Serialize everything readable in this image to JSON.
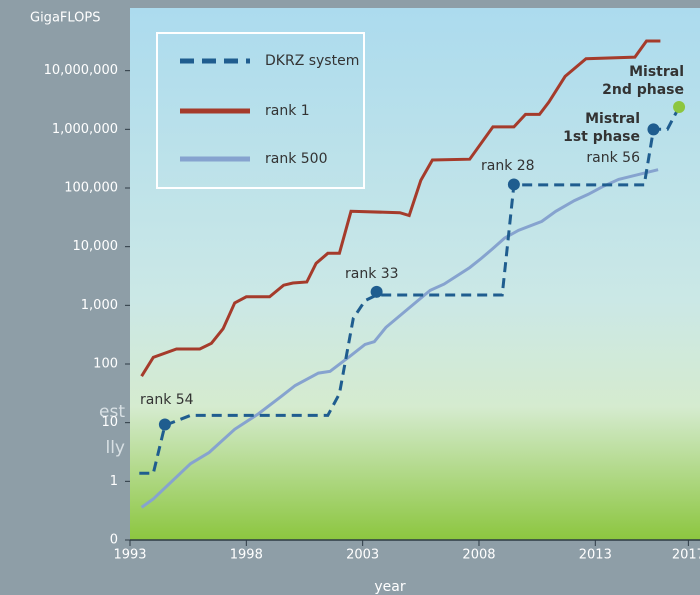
{
  "chart_data": {
    "type": "line",
    "y_unit_label": "GigaFLOPS",
    "x_label": "year",
    "log_y": true,
    "xlim": [
      1993,
      2017.5
    ],
    "ylim": [
      0.1,
      100000000
    ],
    "xticks": [
      1993,
      1998,
      2003,
      2008,
      2013,
      2017
    ],
    "yticks": [
      {
        "value": 0.1,
        "label": "0"
      },
      1,
      10,
      100,
      {
        "value": 1000,
        "label": "1,000"
      },
      {
        "value": 10000,
        "label": "10,000"
      },
      {
        "value": 100000,
        "label": "100,000"
      },
      {
        "value": 1000000,
        "label": "1,000,000"
      },
      {
        "value": 10000000,
        "label": "10,000,000"
      }
    ],
    "series": [
      {
        "name": "DKRZ system",
        "color": "#1f5d8f",
        "dashed": true,
        "x": [
          1993.4,
          1994,
          1994.5,
          1995.6,
          2001.5,
          2002,
          2002.6,
          2003.1,
          2003.6,
          2009,
          2009.5,
          2015.1,
          2015.5,
          2016.1,
          2016.6
        ],
        "values": [
          1.37,
          1.37,
          9,
          13.3,
          13.3,
          31,
          600,
          1200,
          1500,
          1500,
          113000,
          113000,
          1000000,
          1000000,
          2400000
        ]
      },
      {
        "name": "rank 1",
        "color": "#a53b2b",
        "dashed": false,
        "x": [
          1993.5,
          1994,
          1995,
          1996,
          1996.5,
          1997,
          1997.5,
          1998,
          1999,
          1999.6,
          2000,
          2000.6,
          2001,
          2001.5,
          2002,
          2002.5,
          2004.6,
          2005,
          2005.5,
          2006,
          2007.6,
          2008.6,
          2009.5,
          2010,
          2010.6,
          2011,
          2011.7,
          2012.6,
          2014.7,
          2015.2,
          2015.8
        ],
        "values": [
          62,
          130,
          180,
          180,
          225,
          400,
          1100,
          1400,
          1400,
          2200,
          2400,
          2500,
          5200,
          7700,
          7700,
          40000,
          38000,
          34000,
          135000,
          300000,
          310000,
          1100000,
          1100000,
          1800000,
          1800000,
          2900000,
          8000000,
          16000000,
          17000000,
          32000000,
          32000000
        ]
      },
      {
        "name": "rank 500",
        "color": "#86a3cf",
        "dashed": false,
        "x": [
          1993.5,
          1994,
          1995.6,
          1996.4,
          1997.5,
          1998.5,
          1999.5,
          2000.1,
          2001.1,
          2001.6,
          2002.5,
          2003.1,
          2003.5,
          2004,
          2005.9,
          2006.5,
          2007.6,
          2008.1,
          2008.6,
          2009.1,
          2009.7,
          2010.7,
          2011.3,
          2012.1,
          2012.7,
          2013.3,
          2014,
          2015.7
        ],
        "values": [
          0.36,
          0.5,
          2,
          3.1,
          7.7,
          14,
          28,
          43,
          70,
          75,
          140,
          215,
          240,
          420,
          1800,
          2300,
          4400,
          6300,
          9300,
          14000,
          19000,
          27000,
          40000,
          61000,
          78000,
          105000,
          140000,
          205000
        ]
      }
    ],
    "points": [
      {
        "x": 1994.5,
        "y": 9.3,
        "color": "#1f5d8f"
      },
      {
        "x": 2003.6,
        "y": 1700,
        "color": "#1f5d8f"
      },
      {
        "x": 2009.5,
        "y": 115000,
        "color": "#1f5d8f"
      },
      {
        "x": 2015.5,
        "y": 1000000,
        "color": "#1f5d8f"
      },
      {
        "x": 2016.6,
        "y": 2400000,
        "color": "#8dc63f"
      }
    ],
    "annotations": [
      "rank 54",
      "rank 33",
      "rank 28",
      "Mistral",
      "1st phase",
      "rank 56",
      "Mistral",
      "2nd phase"
    ],
    "side_text": [
      "est",
      "lly"
    ]
  }
}
